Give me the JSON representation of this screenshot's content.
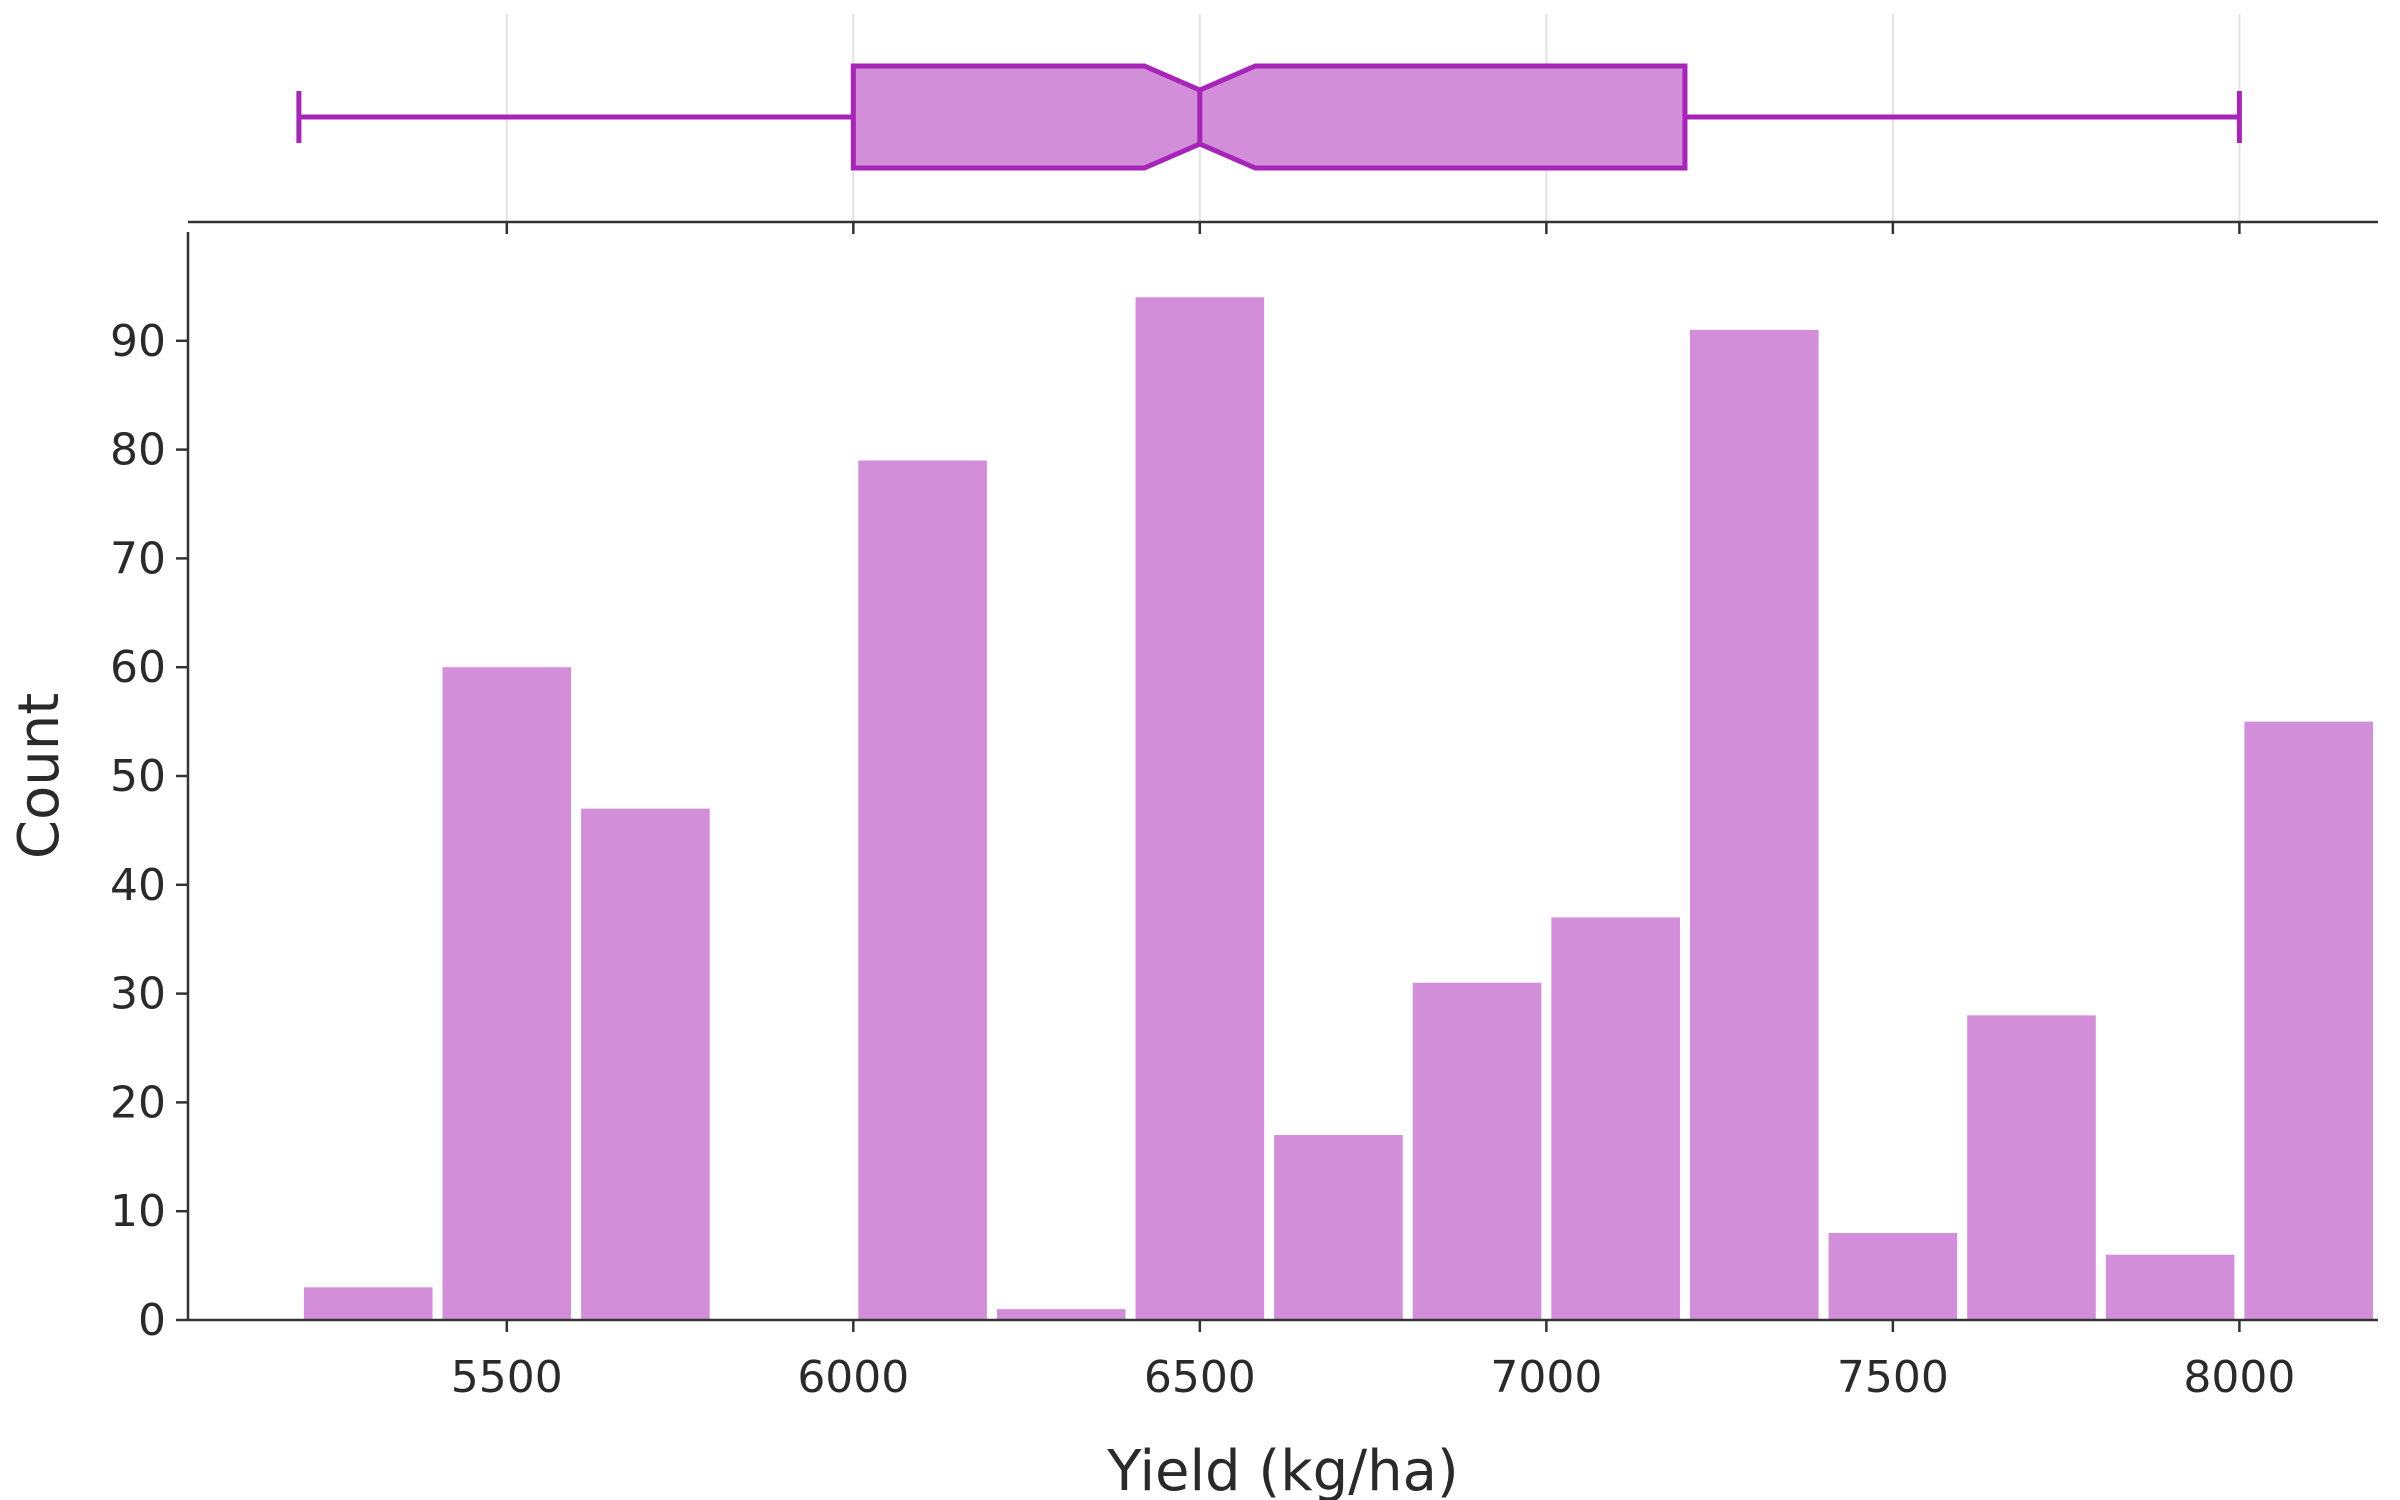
{
  "chart_data": {
    "type": "bar",
    "subtype": "histogram-with-marginal-box",
    "title": "",
    "xlabel": "Yield (kg/ha)",
    "ylabel": "Count",
    "xlim": [
      5040,
      8200
    ],
    "ylim": [
      0,
      100
    ],
    "x_ticks": [
      5500,
      6000,
      6500,
      7000,
      7500,
      8000
    ],
    "y_ticks": [
      0,
      10,
      20,
      30,
      40,
      50,
      60,
      70,
      80,
      90
    ],
    "grid": false,
    "legend": "none",
    "bar_color": "#d28ed9",
    "box_fill": "#d28ed9",
    "box_stroke": "#a624b8",
    "bins": [
      {
        "x0": 5200,
        "x1": 5400,
        "count": 3
      },
      {
        "x0": 5400,
        "x1": 5600,
        "count": 60
      },
      {
        "x0": 5600,
        "x1": 5800,
        "count": 47
      },
      {
        "x0": 5800,
        "x1": 6000,
        "count": 0
      },
      {
        "x0": 6000,
        "x1": 6200,
        "count": 79
      },
      {
        "x0": 6200,
        "x1": 6400,
        "count": 1
      },
      {
        "x0": 6400,
        "x1": 6600,
        "count": 94
      },
      {
        "x0": 6600,
        "x1": 6800,
        "count": 17
      },
      {
        "x0": 6800,
        "x1": 7000,
        "count": 31
      },
      {
        "x0": 7000,
        "x1": 7200,
        "count": 37
      },
      {
        "x0": 7200,
        "x1": 7400,
        "count": 91
      },
      {
        "x0": 7400,
        "x1": 7600,
        "count": 8
      },
      {
        "x0": 7600,
        "x1": 7800,
        "count": 28
      },
      {
        "x0": 7800,
        "x1": 8000,
        "count": 6
      },
      {
        "x0": 8000,
        "x1": 8200,
        "count": 55
      }
    ],
    "box": {
      "min": 5200,
      "q1": 6000,
      "median": 6500,
      "q3": 7200,
      "max": 8000,
      "notch_low": 6420,
      "notch_high": 6580
    }
  }
}
